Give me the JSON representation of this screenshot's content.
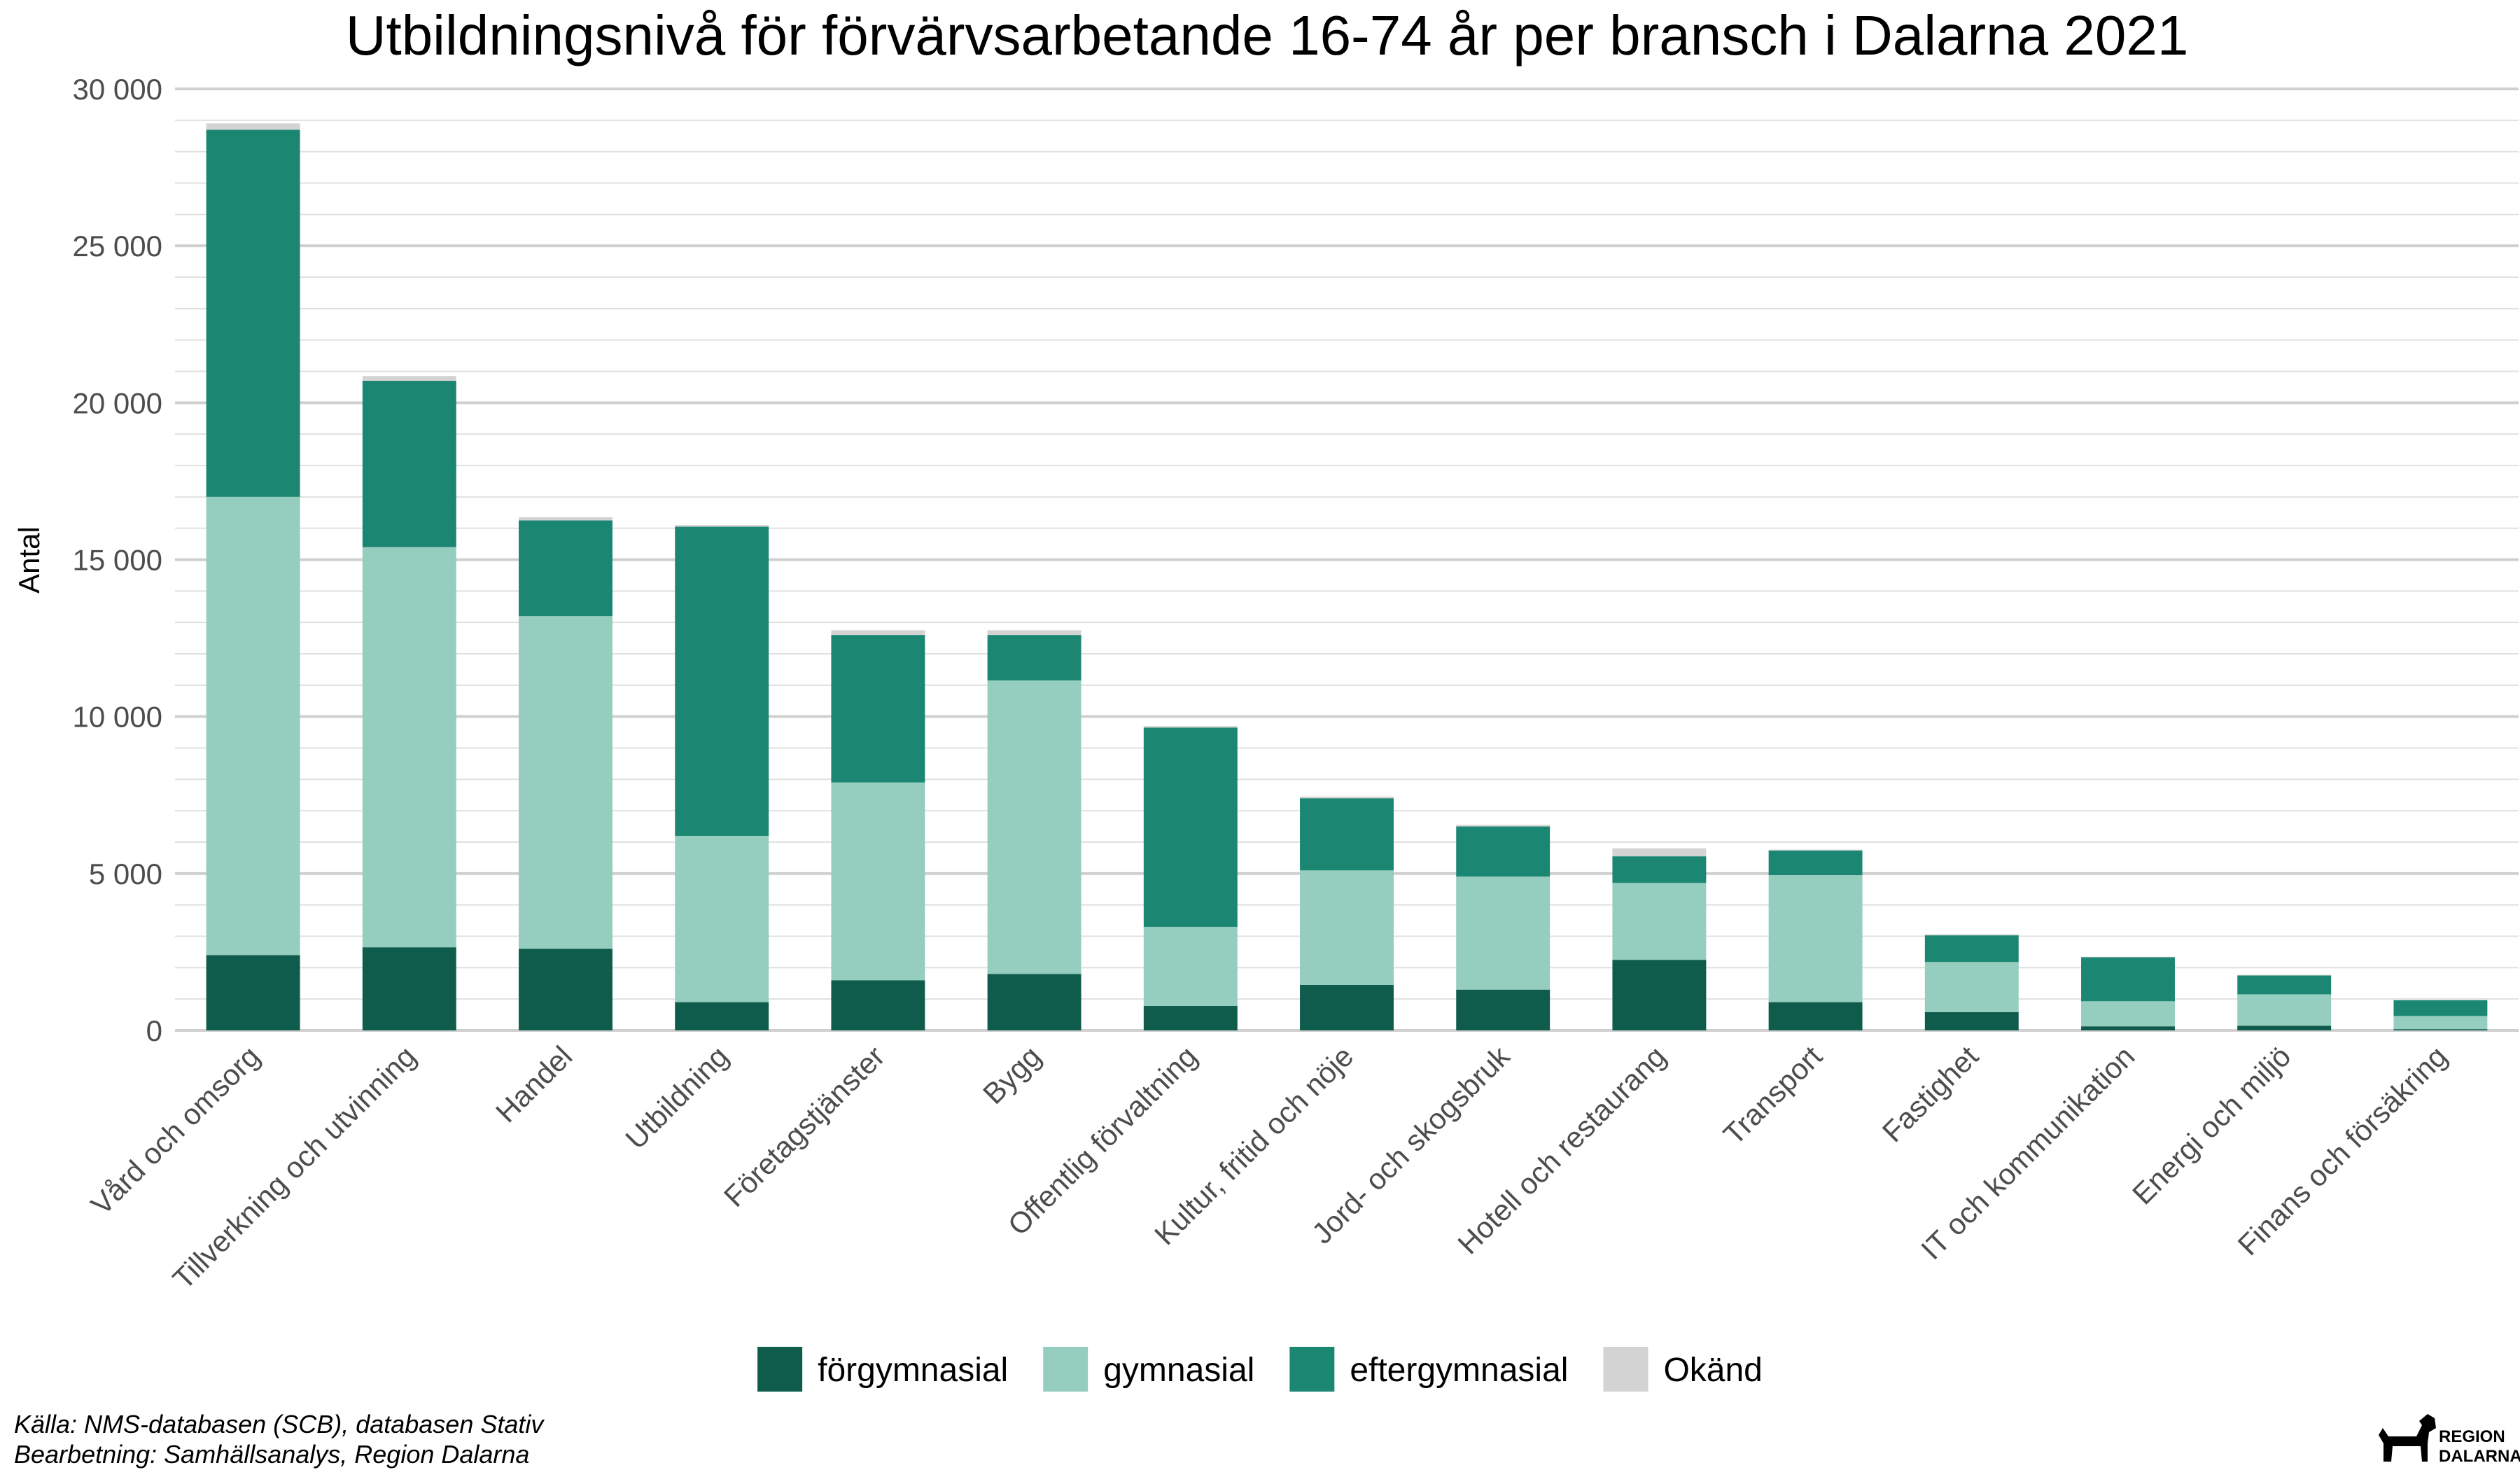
{
  "chart_data": {
    "type": "bar",
    "stacked": true,
    "title": "Utbildningsnivå för förvärvsarbetande 16-74 år per bransch i Dalarna 2021",
    "xlabel": "",
    "ylabel": "Antal",
    "ylim": [
      0,
      30000
    ],
    "yticks": [
      0,
      5000,
      10000,
      15000,
      20000,
      25000,
      30000
    ],
    "ytick_labels": [
      "0",
      "5 000",
      "10 000",
      "15 000",
      "20 000",
      "25 000",
      "30 000"
    ],
    "grid": true,
    "legend_position": "bottom",
    "categories": [
      "Vård och omsorg",
      "Tillverkning och utvinning",
      "Handel",
      "Utbildning",
      "Företagstjänster",
      "Bygg",
      "Offentlig förvaltning",
      "Kultur, fritid och nöje",
      "Jord- och skogsbruk",
      "Hotell och restaurang",
      "Transport",
      "Fastighet",
      "IT och kommunikation",
      "Energi och miljö",
      "Finans och försäkring"
    ],
    "series": [
      {
        "name": "förgymnasial",
        "color": "#0f5c4d",
        "values": [
          2400,
          2650,
          2600,
          900,
          1600,
          1800,
          780,
          1450,
          1300,
          2250,
          900,
          580,
          130,
          150,
          40
        ]
      },
      {
        "name": "gymnasial",
        "color": "#95cdbe",
        "values": [
          14600,
          12750,
          10600,
          5300,
          6300,
          9350,
          2520,
          3650,
          3600,
          2450,
          4050,
          1600,
          800,
          1000,
          420
        ]
      },
      {
        "name": "eftergymnasial",
        "color": "#1b8672",
        "values": [
          11700,
          5300,
          3050,
          9850,
          4700,
          1450,
          6350,
          2300,
          1600,
          850,
          780,
          850,
          1400,
          600,
          500
        ]
      },
      {
        "name": "Okänd",
        "color": "#d3d3d3",
        "values": [
          200,
          150,
          100,
          50,
          150,
          150,
          50,
          50,
          50,
          250,
          30,
          30,
          20,
          20,
          10
        ]
      }
    ]
  },
  "caption": {
    "line1": "Källa: NMS-databasen (SCB), databasen Stativ",
    "line2": "Bearbetning: Samhällsanalys, Region Dalarna"
  },
  "logo": {
    "line1": "REGION",
    "line2": "DALARNA",
    "icon": "dala-horse-icon"
  }
}
